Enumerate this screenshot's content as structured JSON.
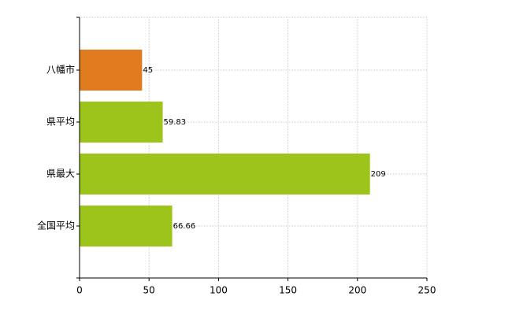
{
  "chart_data": {
    "type": "barh",
    "categories": [
      "八幡市",
      "県平均",
      "県最大",
      "全国平均"
    ],
    "values": [
      45,
      59.83,
      209,
      66.66
    ],
    "colors": [
      "#e07b20",
      "#9dc41a",
      "#9dc41a",
      "#9dc41a"
    ],
    "xlim": [
      0,
      250
    ],
    "xticks": [
      0,
      50,
      100,
      150,
      200,
      250
    ],
    "grid": true
  }
}
